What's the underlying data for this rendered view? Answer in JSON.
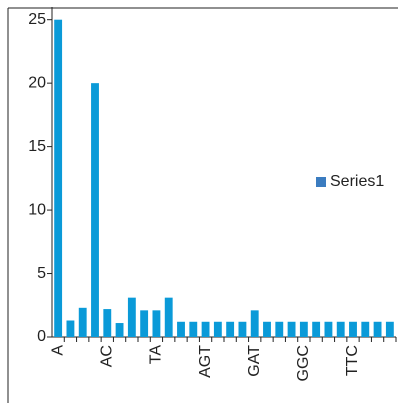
{
  "chart_data": {
    "type": "bar",
    "categories": [
      "A",
      null,
      null,
      null,
      "AC",
      null,
      null,
      null,
      "TA",
      null,
      null,
      null,
      "AGT",
      null,
      null,
      null,
      "GAT",
      null,
      null,
      null,
      "GGC",
      null,
      null,
      null,
      "TTC",
      null,
      null,
      null
    ],
    "series": [
      {
        "name": "Series1",
        "color": "#0a9ad8",
        "legend_color": "#3b7cc0",
        "values": [
          25,
          1.3,
          2.3,
          20,
          2.2,
          1.1,
          3.1,
          2.1,
          2.1,
          3.1,
          1.2,
          1.2,
          1.2,
          1.2,
          1.2,
          1.2,
          2.1,
          1.2,
          1.2,
          1.2,
          1.2,
          1.2,
          1.2,
          1.2,
          1.2,
          1.2,
          1.2,
          1.2
        ]
      }
    ],
    "ylim": [
      0,
      26
    ],
    "yticks": [
      0,
      5,
      10,
      15,
      20,
      25
    ],
    "grid": false,
    "legend": "right"
  }
}
